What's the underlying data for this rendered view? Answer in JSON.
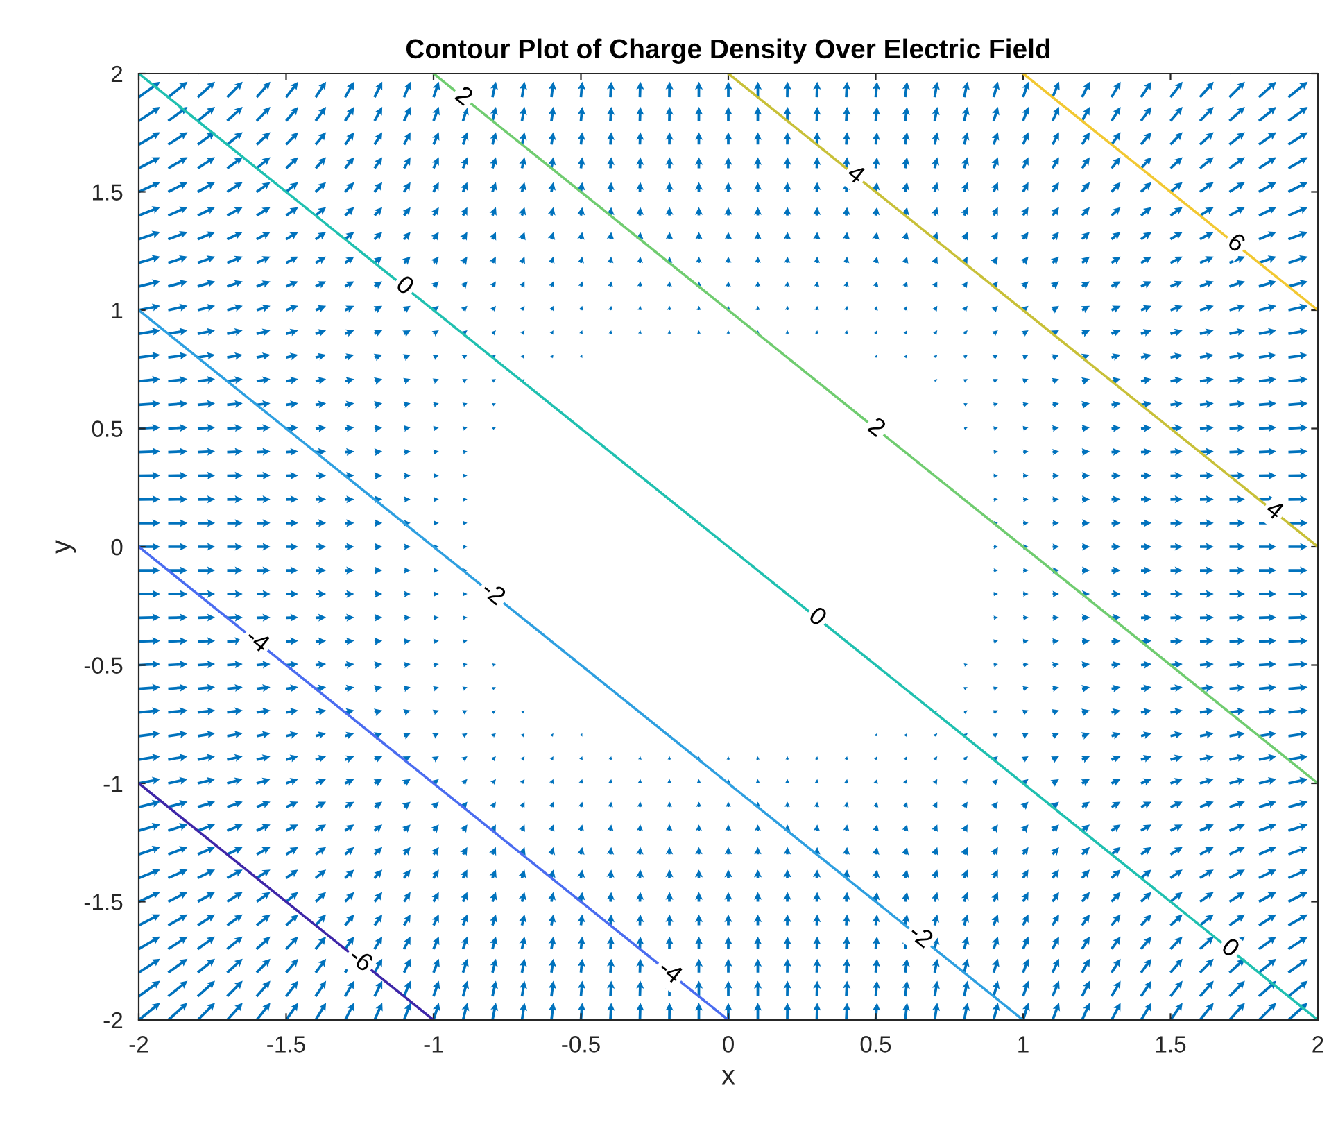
{
  "chart_data": {
    "type": "line",
    "title": "Contour Plot of Charge Density Over Electric Field",
    "xlabel": "x",
    "ylabel": "y",
    "series": [
      {
        "color": "#3e26a8",
        "x": [
          -2,
          -1
        ],
        "values": [
          -1,
          -2
        ]
      },
      {
        "color": "#4a6cf0",
        "x": [
          -2,
          0
        ],
        "values": [
          0,
          -2
        ]
      },
      {
        "color": "#2e9fe0",
        "x": [
          -2,
          1
        ],
        "values": [
          1,
          -2
        ]
      },
      {
        "color": "#20c0b0",
        "x": [
          -2,
          2
        ],
        "values": [
          2,
          -2
        ]
      },
      {
        "color": "#70cc70",
        "x": [
          -1,
          2
        ],
        "values": [
          2,
          -1
        ]
      },
      {
        "color": "#c8c038",
        "x": [
          0,
          2
        ],
        "values": [
          2,
          0
        ]
      },
      {
        "color": "#f2c832",
        "x": [
          1,
          2
        ],
        "values": [
          2,
          1
        ]
      }
    ],
    "annotations": [
      {
        "text": "2",
        "x": -0.9,
        "y": 1.9
      },
      {
        "text": "0",
        "x": -1.1,
        "y": 1.1
      },
      {
        "text": "4",
        "x": 0.43,
        "y": 1.57
      },
      {
        "text": "6",
        "x": 1.72,
        "y": 1.28
      },
      {
        "text": "2",
        "x": 0.5,
        "y": 0.5
      },
      {
        "text": "4",
        "x": 1.85,
        "y": 0.15
      },
      {
        "text": "-2",
        "x": -0.8,
        "y": -0.2
      },
      {
        "text": "0",
        "x": 0.3,
        "y": -0.3
      },
      {
        "text": "-4",
        "x": -1.6,
        "y": -0.4
      },
      {
        "text": "-2",
        "x": 0.65,
        "y": -1.65
      },
      {
        "text": "0",
        "x": 1.7,
        "y": -1.7
      },
      {
        "text": "-6",
        "x": -1.25,
        "y": -1.75
      },
      {
        "text": "-4",
        "x": -0.2,
        "y": -1.8
      }
    ],
    "xlim": [
      -2,
      2
    ],
    "ylim": [
      -2,
      2
    ],
    "xticks": [
      -2,
      -1.5,
      -1,
      -0.5,
      0,
      0.5,
      1,
      1.5,
      2
    ],
    "yticks": [
      -2,
      -1.5,
      -1,
      -0.5,
      0,
      0.5,
      1,
      1.5,
      2
    ],
    "grid": false,
    "marker": "none",
    "line_style": "solid"
  }
}
